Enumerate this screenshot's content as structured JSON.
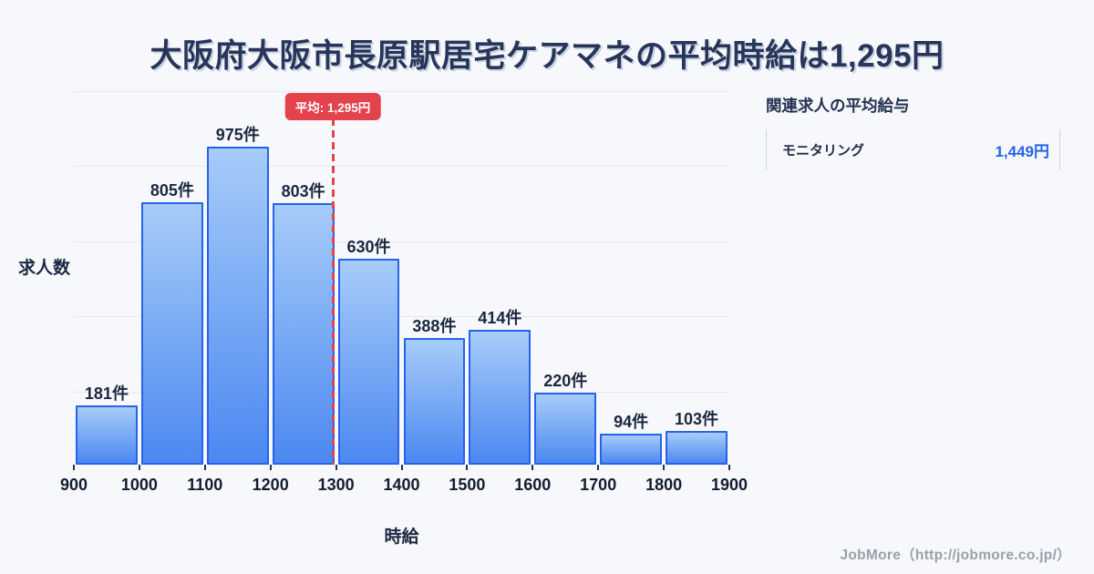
{
  "title": "大阪府大阪市長原駅居宅ケアマネの平均時給は1,295円",
  "chart_data": {
    "type": "bar",
    "title": "大阪府大阪市長原駅居宅ケアマネの平均時給は1,295円",
    "xlabel": "時給",
    "ylabel": "求人数",
    "bin_edges": [
      900,
      1000,
      1100,
      1200,
      1300,
      1400,
      1500,
      1600,
      1700,
      1800,
      1900
    ],
    "tick_labels": [
      "900",
      "1000",
      "1100",
      "1200",
      "1300",
      "1400",
      "1500",
      "1600",
      "1700",
      "1800",
      "1900"
    ],
    "values": [
      181,
      805,
      975,
      803,
      630,
      388,
      414,
      220,
      94,
      103
    ],
    "value_labels": [
      "181件",
      "805件",
      "975件",
      "803件",
      "630件",
      "388件",
      "414件",
      "220件",
      "94件",
      "103件"
    ],
    "unit": "件",
    "mean": {
      "value": 1295,
      "label": "平均: 1,295円"
    },
    "xlim": [
      900,
      1900
    ],
    "ylim": [
      0,
      1145
    ],
    "grid": true,
    "legend": false
  },
  "side_panel": {
    "heading": "関連求人の平均給与",
    "rows": [
      {
        "label": "モニタリング",
        "value": "1,449円"
      }
    ]
  },
  "footer": {
    "credit": "JobMore（http://jobmore.co.jp/）"
  },
  "colors": {
    "background": "#f7f8fb",
    "title_text": "#27355a",
    "bar_fill_top": "#a7ccf9",
    "bar_fill_bottom": "#4c88f1",
    "bar_border": "#2563eb",
    "grid_line": "#e5e8ef",
    "mean_red": "#e4424d",
    "value_blue": "#2563eb",
    "footer_gray": "#9aa0a9"
  }
}
